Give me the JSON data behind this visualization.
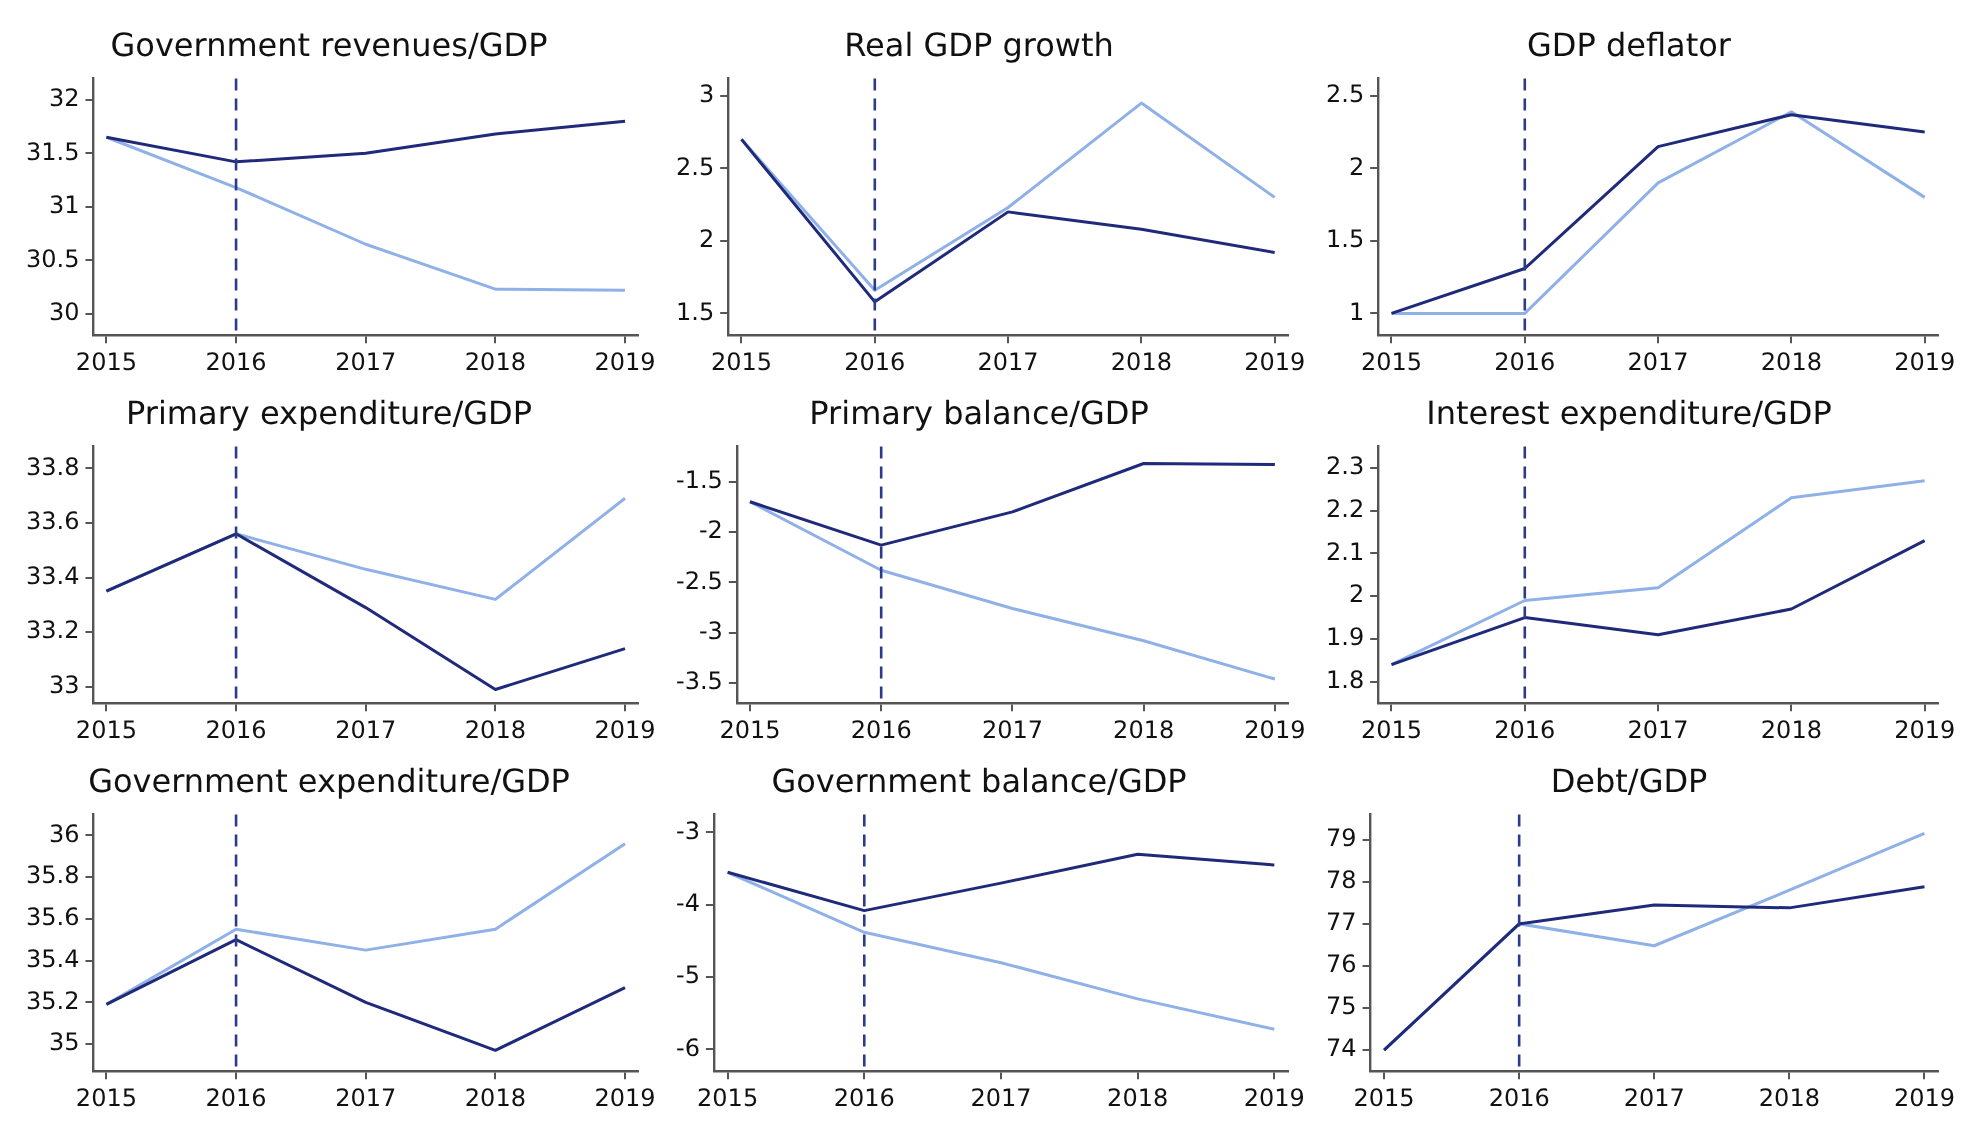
{
  "chart_data": [
    {
      "type": "line",
      "title": "Government revenues/GDP",
      "x": [
        2015,
        2016,
        2017,
        2018,
        2019
      ],
      "xlim": [
        2014.9,
        2019.1
      ],
      "xticks": [
        2015,
        2016,
        2017,
        2018,
        2019
      ],
      "ylim": [
        29.8,
        32.2
      ],
      "yticks": [
        30,
        30.5,
        31,
        31.5,
        32
      ],
      "marker": "none",
      "ref_lines": [
        {
          "axis": "x",
          "value": 2016,
          "color": "#2b3a8a",
          "line_style": "dashed"
        }
      ],
      "series": [
        {
          "color": "#1f2a7a",
          "values": [
            31.65,
            31.42,
            31.5,
            31.68,
            31.8
          ]
        },
        {
          "color": "#8fb1e8",
          "values": [
            31.65,
            31.18,
            30.65,
            30.23,
            30.22
          ]
        }
      ]
    },
    {
      "type": "line",
      "title": "Real GDP growth",
      "x": [
        2015,
        2016,
        2017,
        2018,
        2019
      ],
      "xlim": [
        2014.9,
        2019.1
      ],
      "xticks": [
        2015,
        2016,
        2017,
        2018,
        2019
      ],
      "ylim": [
        1.35,
        3.12
      ],
      "yticks": [
        1.5,
        2,
        2.5,
        3
      ],
      "marker": "none",
      "ref_lines": [
        {
          "axis": "x",
          "value": 2016,
          "color": "#2b3a8a",
          "line_style": "dashed"
        }
      ],
      "series": [
        {
          "color": "#1f2a7a",
          "values": [
            2.7,
            1.58,
            2.2,
            2.08,
            1.92
          ]
        },
        {
          "color": "#8fb1e8",
          "values": [
            2.7,
            1.66,
            2.23,
            2.95,
            2.3
          ]
        }
      ]
    },
    {
      "type": "line",
      "title": "GDP deflator",
      "x": [
        2015,
        2016,
        2017,
        2018,
        2019
      ],
      "xlim": [
        2014.9,
        2019.1
      ],
      "xticks": [
        2015,
        2016,
        2017,
        2018,
        2019
      ],
      "ylim": [
        0.85,
        2.62
      ],
      "yticks": [
        1,
        1.5,
        2,
        2.5
      ],
      "marker": "none",
      "ref_lines": [
        {
          "axis": "x",
          "value": 2016,
          "color": "#2b3a8a",
          "line_style": "dashed"
        }
      ],
      "series": [
        {
          "color": "#1f2a7a",
          "values": [
            1.0,
            1.31,
            2.15,
            2.37,
            2.25
          ]
        },
        {
          "color": "#8fb1e8",
          "values": [
            1.0,
            1.0,
            1.9,
            2.39,
            1.8
          ]
        }
      ]
    },
    {
      "type": "line",
      "title": "Primary expenditure/GDP",
      "x": [
        2015,
        2016,
        2017,
        2018,
        2019
      ],
      "xlim": [
        2014.9,
        2019.1
      ],
      "xticks": [
        2015,
        2016,
        2017,
        2018,
        2019
      ],
      "ylim": [
        32.94,
        33.88
      ],
      "yticks": [
        33,
        33.2,
        33.4,
        33.6,
        33.8
      ],
      "marker": "none",
      "ref_lines": [
        {
          "axis": "x",
          "value": 2016,
          "color": "#2b3a8a",
          "line_style": "dashed"
        }
      ],
      "series": [
        {
          "color": "#1f2a7a",
          "values": [
            33.35,
            33.56,
            33.29,
            32.99,
            33.14
          ]
        },
        {
          "color": "#8fb1e8",
          "values": [
            33.35,
            33.56,
            33.43,
            33.32,
            33.69
          ]
        }
      ]
    },
    {
      "type": "line",
      "title": "Primary balance/GDP",
      "x": [
        2015,
        2016,
        2017,
        2018,
        2019
      ],
      "xlim": [
        2014.9,
        2019.1
      ],
      "xticks": [
        2015,
        2016,
        2017,
        2018,
        2019
      ],
      "ylim": [
        -3.7,
        -1.15
      ],
      "yticks": [
        -3.5,
        -3,
        -2.5,
        -2,
        -1.5
      ],
      "marker": "none",
      "ref_lines": [
        {
          "axis": "x",
          "value": 2016,
          "color": "#2b3a8a",
          "line_style": "dashed"
        }
      ],
      "series": [
        {
          "color": "#1f2a7a",
          "values": [
            -1.7,
            -2.13,
            -1.8,
            -1.32,
            -1.33
          ]
        },
        {
          "color": "#8fb1e8",
          "values": [
            -1.7,
            -2.38,
            -2.76,
            -3.08,
            -3.46
          ]
        }
      ]
    },
    {
      "type": "line",
      "title": "Interest expenditure/GDP",
      "x": [
        2015,
        2016,
        2017,
        2018,
        2019
      ],
      "xlim": [
        2014.9,
        2019.1
      ],
      "xticks": [
        2015,
        2016,
        2017,
        2018,
        2019
      ],
      "ylim": [
        1.75,
        2.35
      ],
      "yticks": [
        1.8,
        1.9,
        2,
        2.1,
        2.2,
        2.3
      ],
      "marker": "none",
      "ref_lines": [
        {
          "axis": "x",
          "value": 2016,
          "color": "#2b3a8a",
          "line_style": "dashed"
        }
      ],
      "series": [
        {
          "color": "#1f2a7a",
          "values": [
            1.84,
            1.95,
            1.91,
            1.97,
            2.13
          ]
        },
        {
          "color": "#8fb1e8",
          "values": [
            1.84,
            1.99,
            2.02,
            2.23,
            2.27
          ]
        }
      ]
    },
    {
      "type": "line",
      "title": "Government expenditure/GDP",
      "x": [
        2015,
        2016,
        2017,
        2018,
        2019
      ],
      "xlim": [
        2014.9,
        2019.1
      ],
      "xticks": [
        2015,
        2016,
        2017,
        2018,
        2019
      ],
      "ylim": [
        34.87,
        36.1
      ],
      "yticks": [
        35,
        35.2,
        35.4,
        35.6,
        35.8,
        36
      ],
      "marker": "none",
      "ref_lines": [
        {
          "axis": "x",
          "value": 2016,
          "color": "#2b3a8a",
          "line_style": "dashed"
        }
      ],
      "series": [
        {
          "color": "#1f2a7a",
          "values": [
            35.19,
            35.5,
            35.2,
            34.97,
            35.27
          ]
        },
        {
          "color": "#8fb1e8",
          "values": [
            35.19,
            35.55,
            35.45,
            35.55,
            35.96
          ]
        }
      ]
    },
    {
      "type": "line",
      "title": "Government balance/GDP",
      "x": [
        2015,
        2016,
        2017,
        2018,
        2019
      ],
      "xlim": [
        2014.9,
        2019.1
      ],
      "xticks": [
        2015,
        2016,
        2017,
        2018,
        2019
      ],
      "ylim": [
        -6.3,
        -2.75
      ],
      "yticks": [
        -6,
        -5,
        -4,
        -3
      ],
      "marker": "none",
      "ref_lines": [
        {
          "axis": "x",
          "value": 2016,
          "color": "#2b3a8a",
          "line_style": "dashed"
        }
      ],
      "series": [
        {
          "color": "#1f2a7a",
          "values": [
            -3.55,
            -4.08,
            -3.7,
            -3.3,
            -3.45
          ]
        },
        {
          "color": "#8fb1e8",
          "values": [
            -3.55,
            -4.38,
            -4.8,
            -5.3,
            -5.72
          ]
        }
      ]
    },
    {
      "type": "line",
      "title": "Debt/GDP",
      "x": [
        2015,
        2016,
        2017,
        2018,
        2019
      ],
      "xlim": [
        2014.9,
        2019.1
      ],
      "xticks": [
        2015,
        2016,
        2017,
        2018,
        2019
      ],
      "ylim": [
        73.5,
        79.6
      ],
      "yticks": [
        74,
        75,
        76,
        77,
        78,
        79
      ],
      "marker": "none",
      "ref_lines": [
        {
          "axis": "x",
          "value": 2016,
          "color": "#2b3a8a",
          "line_style": "dashed"
        }
      ],
      "series": [
        {
          "color": "#1f2a7a",
          "values": [
            74,
            77,
            77.45,
            77.38,
            77.88
          ]
        },
        {
          "color": "#8fb1e8",
          "values": [
            74,
            77,
            76.48,
            77.8,
            79.15
          ]
        }
      ]
    }
  ]
}
